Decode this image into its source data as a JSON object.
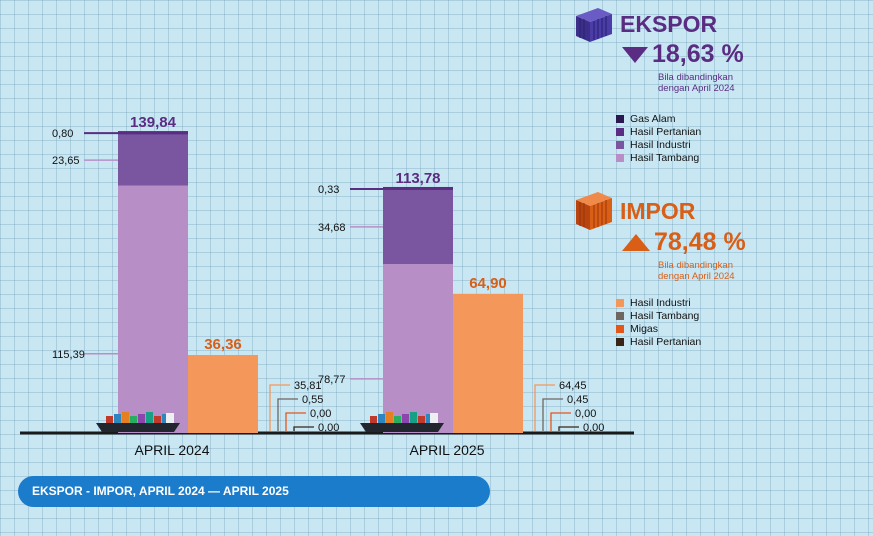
{
  "chart_data": {
    "type": "bar",
    "periods": [
      {
        "label": "APRIL 2024",
        "ekspor_total": "139,84",
        "ekspor": [
          {
            "name": "Hasil Tambang",
            "value": 115.39,
            "label": "115,39"
          },
          {
            "name": "Hasil Industri",
            "value": 23.65,
            "label": "23,65"
          },
          {
            "name": "Hasil Pertanian",
            "value": 0.8,
            "label": "0,80"
          },
          {
            "name": "Gas Alam",
            "value": 0.0,
            "label": ""
          }
        ],
        "impor_total": "36,36",
        "impor_value": 36.36,
        "impor": [
          {
            "name": "Hasil Industri",
            "value": 35.81,
            "label": "35,81"
          },
          {
            "name": "Hasil Tambang",
            "value": 0.55,
            "label": "0,55"
          },
          {
            "name": "Migas",
            "value": 0.0,
            "label": "0,00"
          },
          {
            "name": "Hasil Pertanian",
            "value": 0.0,
            "label": "0,00"
          }
        ]
      },
      {
        "label": "APRIL 2025",
        "ekspor_total": "113,78",
        "ekspor": [
          {
            "name": "Hasil Tambang",
            "value": 78.77,
            "label": "78,77"
          },
          {
            "name": "Hasil Industri",
            "value": 34.68,
            "label": "34,68"
          },
          {
            "name": "Hasil Pertanian",
            "value": 0.33,
            "label": "0,33"
          },
          {
            "name": "Gas Alam",
            "value": 0.0,
            "label": ""
          }
        ],
        "impor_total": "64,90",
        "impor_value": 64.9,
        "impor": [
          {
            "name": "Hasil Industri",
            "value": 64.45,
            "label": "64,45"
          },
          {
            "name": "Hasil Tambang",
            "value": 0.45,
            "label": "0,45"
          },
          {
            "name": "Migas",
            "value": 0.0,
            "label": "0,00"
          },
          {
            "name": "Hasil Pertanian",
            "value": 0.0,
            "label": "0,00"
          }
        ]
      }
    ],
    "ylim": [
      0,
      145
    ]
  },
  "ekspor": {
    "title": "EKSPOR",
    "change": "18,63 %",
    "direction": "down",
    "note": "Bila dibandingkan dengan April 2024",
    "legend": [
      {
        "name": "Gas Alam",
        "color": "#2a1850"
      },
      {
        "name": "Hasil Pertanian",
        "color": "#5b2e86"
      },
      {
        "name": "Hasil Industri",
        "color": "#7a55a0"
      },
      {
        "name": "Hasil Tambang",
        "color": "#b78fc6"
      }
    ]
  },
  "impor": {
    "title": "IMPOR",
    "change": "78,48 %",
    "direction": "up",
    "note": "Bila dibandingkan dengan April 2024",
    "legend": [
      {
        "name": "Hasil Industri",
        "color": "#f4975a"
      },
      {
        "name": "Hasil Tambang",
        "color": "#6e6660"
      },
      {
        "name": "Migas",
        "color": "#e4571b"
      },
      {
        "name": "Hasil Pertanian",
        "color": "#3a2418"
      }
    ]
  },
  "colors": {
    "ekspor_dark": "#5a2d82",
    "impor_orange": "#d95e16",
    "footer": "#1b7ccc"
  },
  "footer": "EKSPOR - IMPOR, APRIL 2024 — APRIL 2025"
}
